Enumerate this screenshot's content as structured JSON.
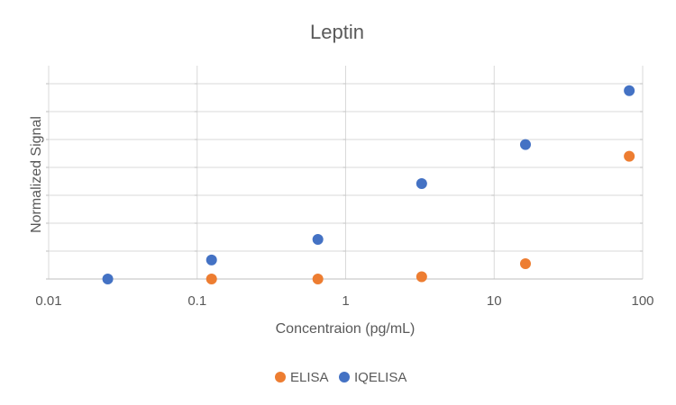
{
  "chart_data": {
    "type": "scatter",
    "title": "Leptin",
    "xlabel": "Concentraion (pg/mL)",
    "ylabel": "Normalized Signal",
    "x_scale": "log",
    "xlim": [
      0.01,
      100
    ],
    "ylim": [
      0,
      7
    ],
    "x_ticks": [
      {
        "value": 0.01,
        "label": "0.01"
      },
      {
        "value": 0.1,
        "label": "0.1"
      },
      {
        "value": 1,
        "label": "1"
      },
      {
        "value": 10,
        "label": "10"
      },
      {
        "value": 100,
        "label": "100"
      }
    ],
    "y_gridlines": [
      0,
      1,
      2,
      3,
      4,
      5,
      6,
      7
    ],
    "y_tick_labels_shown": false,
    "grid": true,
    "legend": {
      "position": "bottom"
    },
    "series": [
      {
        "name": "ELISA",
        "color": "#ED7D31",
        "points": [
          {
            "x": 0.125,
            "y": 0.0
          },
          {
            "x": 0.65,
            "y": 0.0
          },
          {
            "x": 3.25,
            "y": 0.08
          },
          {
            "x": 16.25,
            "y": 0.55
          },
          {
            "x": 81.25,
            "y": 4.4
          }
        ]
      },
      {
        "name": "IQELISA",
        "color": "#4472C4",
        "points": [
          {
            "x": 0.025,
            "y": 0.0
          },
          {
            "x": 0.125,
            "y": 0.68
          },
          {
            "x": 0.65,
            "y": 1.42
          },
          {
            "x": 3.25,
            "y": 3.42
          },
          {
            "x": 16.25,
            "y": 4.82
          },
          {
            "x": 81.25,
            "y": 6.75
          }
        ]
      }
    ]
  }
}
